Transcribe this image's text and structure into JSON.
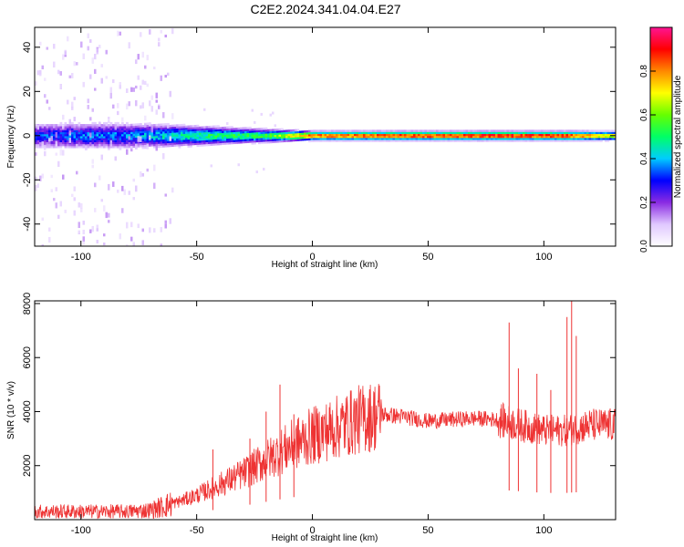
{
  "figure": {
    "title": "C2E2.2024.341.04.04.E27"
  },
  "chart_data": [
    {
      "type": "heatmap",
      "name": "spectrogram",
      "xlabel": "Height of straight line (km)",
      "ylabel": "Frequency (Hz)",
      "xlim": [
        -120,
        131
      ],
      "ylim": [
        -50,
        49
      ],
      "xticks": [
        -100,
        -50,
        0,
        50,
        100
      ],
      "yticks": [
        -40,
        -20,
        0,
        20,
        40
      ],
      "grid": false,
      "colorbar": {
        "label": "Normalized spectral amplitude",
        "range": [
          0,
          1
        ],
        "ticks": [
          "0.0",
          "0.2",
          "0.4",
          "0.6",
          "0.8"
        ],
        "colors": [
          "#ffffff",
          "#e0c8ff",
          "#8a2be2",
          "#0000ff",
          "#00ccff",
          "#00ff66",
          "#66ff00",
          "#ffff00",
          "#ff8800",
          "#ff0000",
          "#ff1493"
        ]
      },
      "ridge": [
        {
          "x": -120,
          "peak": 0.3,
          "width": 6
        },
        {
          "x": -100,
          "peak": 0.35,
          "width": 6
        },
        {
          "x": -80,
          "peak": 0.35,
          "width": 6
        },
        {
          "x": -60,
          "peak": 0.45,
          "width": 5
        },
        {
          "x": -40,
          "peak": 0.5,
          "width": 4
        },
        {
          "x": -20,
          "peak": 0.55,
          "width": 3
        },
        {
          "x": 0,
          "peak": 0.85,
          "width": 2
        },
        {
          "x": 50,
          "peak": 0.9,
          "width": 2
        },
        {
          "x": 80,
          "peak": 0.92,
          "width": 2
        },
        {
          "x": 110,
          "peak": 0.9,
          "width": 2
        },
        {
          "x": 131,
          "peak": 0.7,
          "width": 2
        }
      ],
      "noise_region": [
        -120,
        -60
      ]
    },
    {
      "type": "line",
      "name": "snr",
      "xlabel": "Height of straight line (km)",
      "ylabel": "SNR (10 * v/v)",
      "xlim": [
        -120,
        131
      ],
      "ylim": [
        0,
        8100
      ],
      "xticks": [
        -100,
        -50,
        0,
        50,
        100
      ],
      "yticks": [
        2000,
        4000,
        6000,
        8000
      ],
      "color": "#ee3333",
      "grid": false,
      "envelope": [
        {
          "x": -120,
          "y": 300
        },
        {
          "x": -100,
          "y": 300
        },
        {
          "x": -80,
          "y": 300
        },
        {
          "x": -70,
          "y": 350
        },
        {
          "x": -60,
          "y": 600
        },
        {
          "x": -50,
          "y": 900
        },
        {
          "x": -40,
          "y": 1300
        },
        {
          "x": -30,
          "y": 1700
        },
        {
          "x": -20,
          "y": 2200
        },
        {
          "x": -10,
          "y": 2700
        },
        {
          "x": 0,
          "y": 3100
        },
        {
          "x": 10,
          "y": 3400
        },
        {
          "x": 20,
          "y": 3700
        },
        {
          "x": 30,
          "y": 3900
        },
        {
          "x": 40,
          "y": 3800
        },
        {
          "x": 50,
          "y": 3650
        },
        {
          "x": 60,
          "y": 3700
        },
        {
          "x": 70,
          "y": 3750
        },
        {
          "x": 80,
          "y": 3700
        },
        {
          "x": 90,
          "y": 3500
        },
        {
          "x": 100,
          "y": 3300
        },
        {
          "x": 110,
          "y": 3300
        },
        {
          "x": 120,
          "y": 3500
        },
        {
          "x": 131,
          "y": 3500
        }
      ],
      "spikes": [
        {
          "x": -43,
          "y": 2600
        },
        {
          "x": -27,
          "y": 3000
        },
        {
          "x": -20,
          "y": 4000
        },
        {
          "x": -14,
          "y": 5000
        },
        {
          "x": -8,
          "y": 3900
        },
        {
          "x": 85,
          "y": 7300
        },
        {
          "x": 89,
          "y": 5600
        },
        {
          "x": 97,
          "y": 5400
        },
        {
          "x": 103,
          "y": 4800
        },
        {
          "x": 110,
          "y": 7500
        },
        {
          "x": 112,
          "y": 8100
        },
        {
          "x": 114,
          "y": 6800
        }
      ]
    }
  ]
}
